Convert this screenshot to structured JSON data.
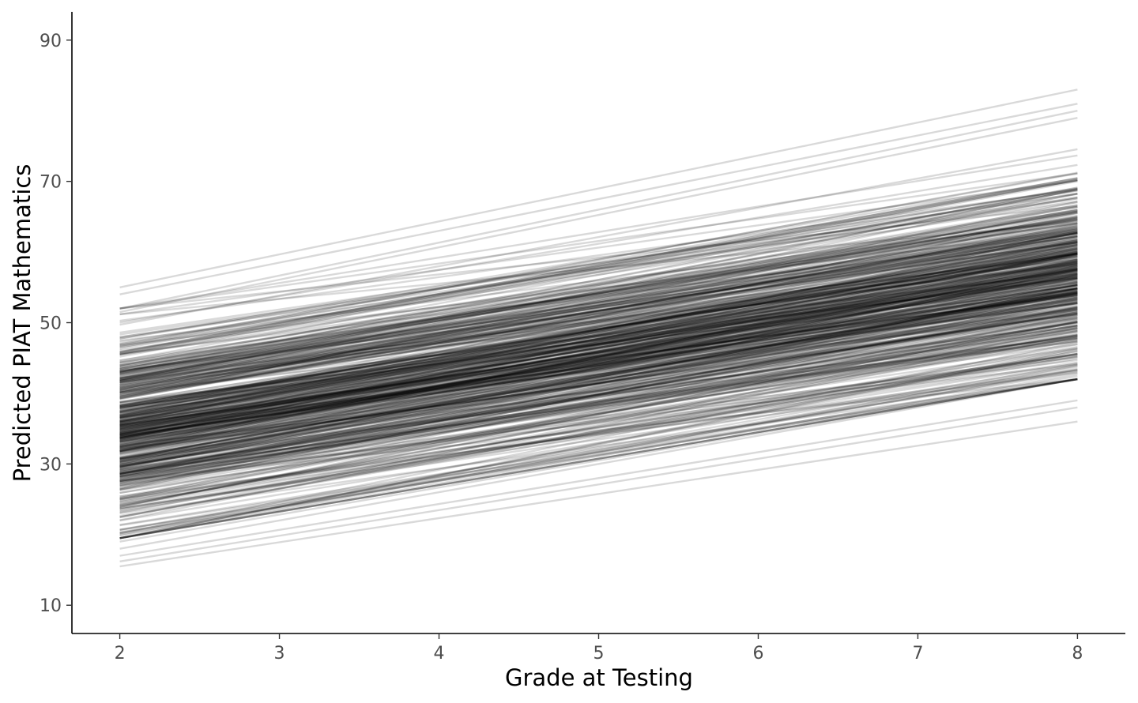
{
  "chart_data": {
    "type": "line",
    "title": "",
    "xlabel": "Grade at Testing",
    "ylabel": "Predicted PIAT Mathematics",
    "xlim": [
      1.7,
      8.3
    ],
    "ylim": [
      6,
      94
    ],
    "xticks": [
      2,
      3,
      4,
      5,
      6,
      7,
      8
    ],
    "yticks": [
      10,
      30,
      50,
      70,
      90
    ],
    "grid": false,
    "legend": "none",
    "line_color": "#000000",
    "line_opacity": 0.15,
    "trajectory_summary": {
      "count": 520,
      "x_start": 2,
      "x_end": 8,
      "y_at_x2_range": [
        15.5,
        55
      ],
      "y_at_x8_range": [
        36,
        83
      ]
    },
    "highlighted_trajectories": [
      {
        "y_at_2": 55.0,
        "y_at_8": 83.0
      },
      {
        "y_at_2": 54.0,
        "y_at_8": 81.0
      },
      {
        "y_at_2": 52.0,
        "y_at_8": 80.0
      },
      {
        "y_at_2": 51.5,
        "y_at_8": 79.0
      },
      {
        "y_at_2": 27.0,
        "y_at_8": 49.5
      },
      {
        "y_at_2": 22.0,
        "y_at_8": 44.0
      },
      {
        "y_at_2": 18.0,
        "y_at_8": 42.0
      },
      {
        "y_at_2": 17.0,
        "y_at_8": 39.0
      },
      {
        "y_at_2": 16.2,
        "y_at_8": 38.0
      },
      {
        "y_at_2": 15.5,
        "y_at_8": 36.0
      },
      {
        "y_at_2": 19.0,
        "y_at_8": 42.0
      },
      {
        "y_at_2": 20.0,
        "y_at_8": 43.5
      },
      {
        "y_at_2": 30.0,
        "y_at_8": 57.5
      },
      {
        "y_at_2": 34.0,
        "y_at_8": 60.0
      }
    ]
  }
}
